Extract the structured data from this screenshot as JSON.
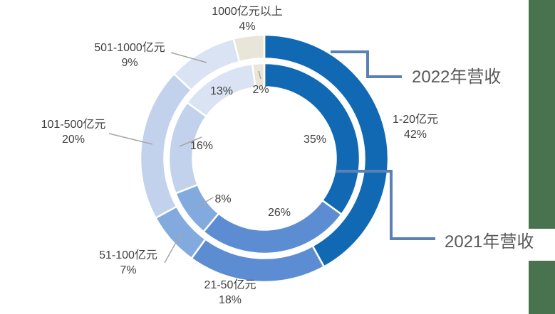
{
  "page": {
    "background": "#ffffff"
  },
  "decor": {
    "green_bar_color": "#49724f"
  },
  "chart_data": {
    "type": "doughnut",
    "title": "",
    "categories": [
      "1-20亿元",
      "21-50亿元",
      "51-100亿元",
      "101-500亿元",
      "501-1000亿元",
      "1000亿元以上"
    ],
    "series": [
      {
        "name": "2022年营收",
        "ring": "outer",
        "values": [
          42,
          18,
          7,
          20,
          9,
          4
        ],
        "labels": [
          "42%",
          "18%",
          "7%",
          "20%",
          "9%",
          "4%"
        ]
      },
      {
        "name": "2021年营收",
        "ring": "inner",
        "values": [
          35,
          26,
          8,
          16,
          13,
          2
        ],
        "labels": [
          "35%",
          "26%",
          "8%",
          "16%",
          "13%",
          "2%"
        ]
      }
    ],
    "colors": [
      "#1169b4",
      "#5c8dd2",
      "#83aade",
      "#c3d2ec",
      "#dae3f4",
      "#e9e6d9"
    ],
    "start_angle_deg": 0,
    "direction": "clockwise",
    "unit": "%",
    "legend_position": "callout-right",
    "grid": false,
    "label_color": "#404040",
    "series_label_color": "#595959",
    "connector_color": "#5b80b5",
    "leader_color": "#a6a6a6",
    "segment_border_color": "#ffffff"
  }
}
